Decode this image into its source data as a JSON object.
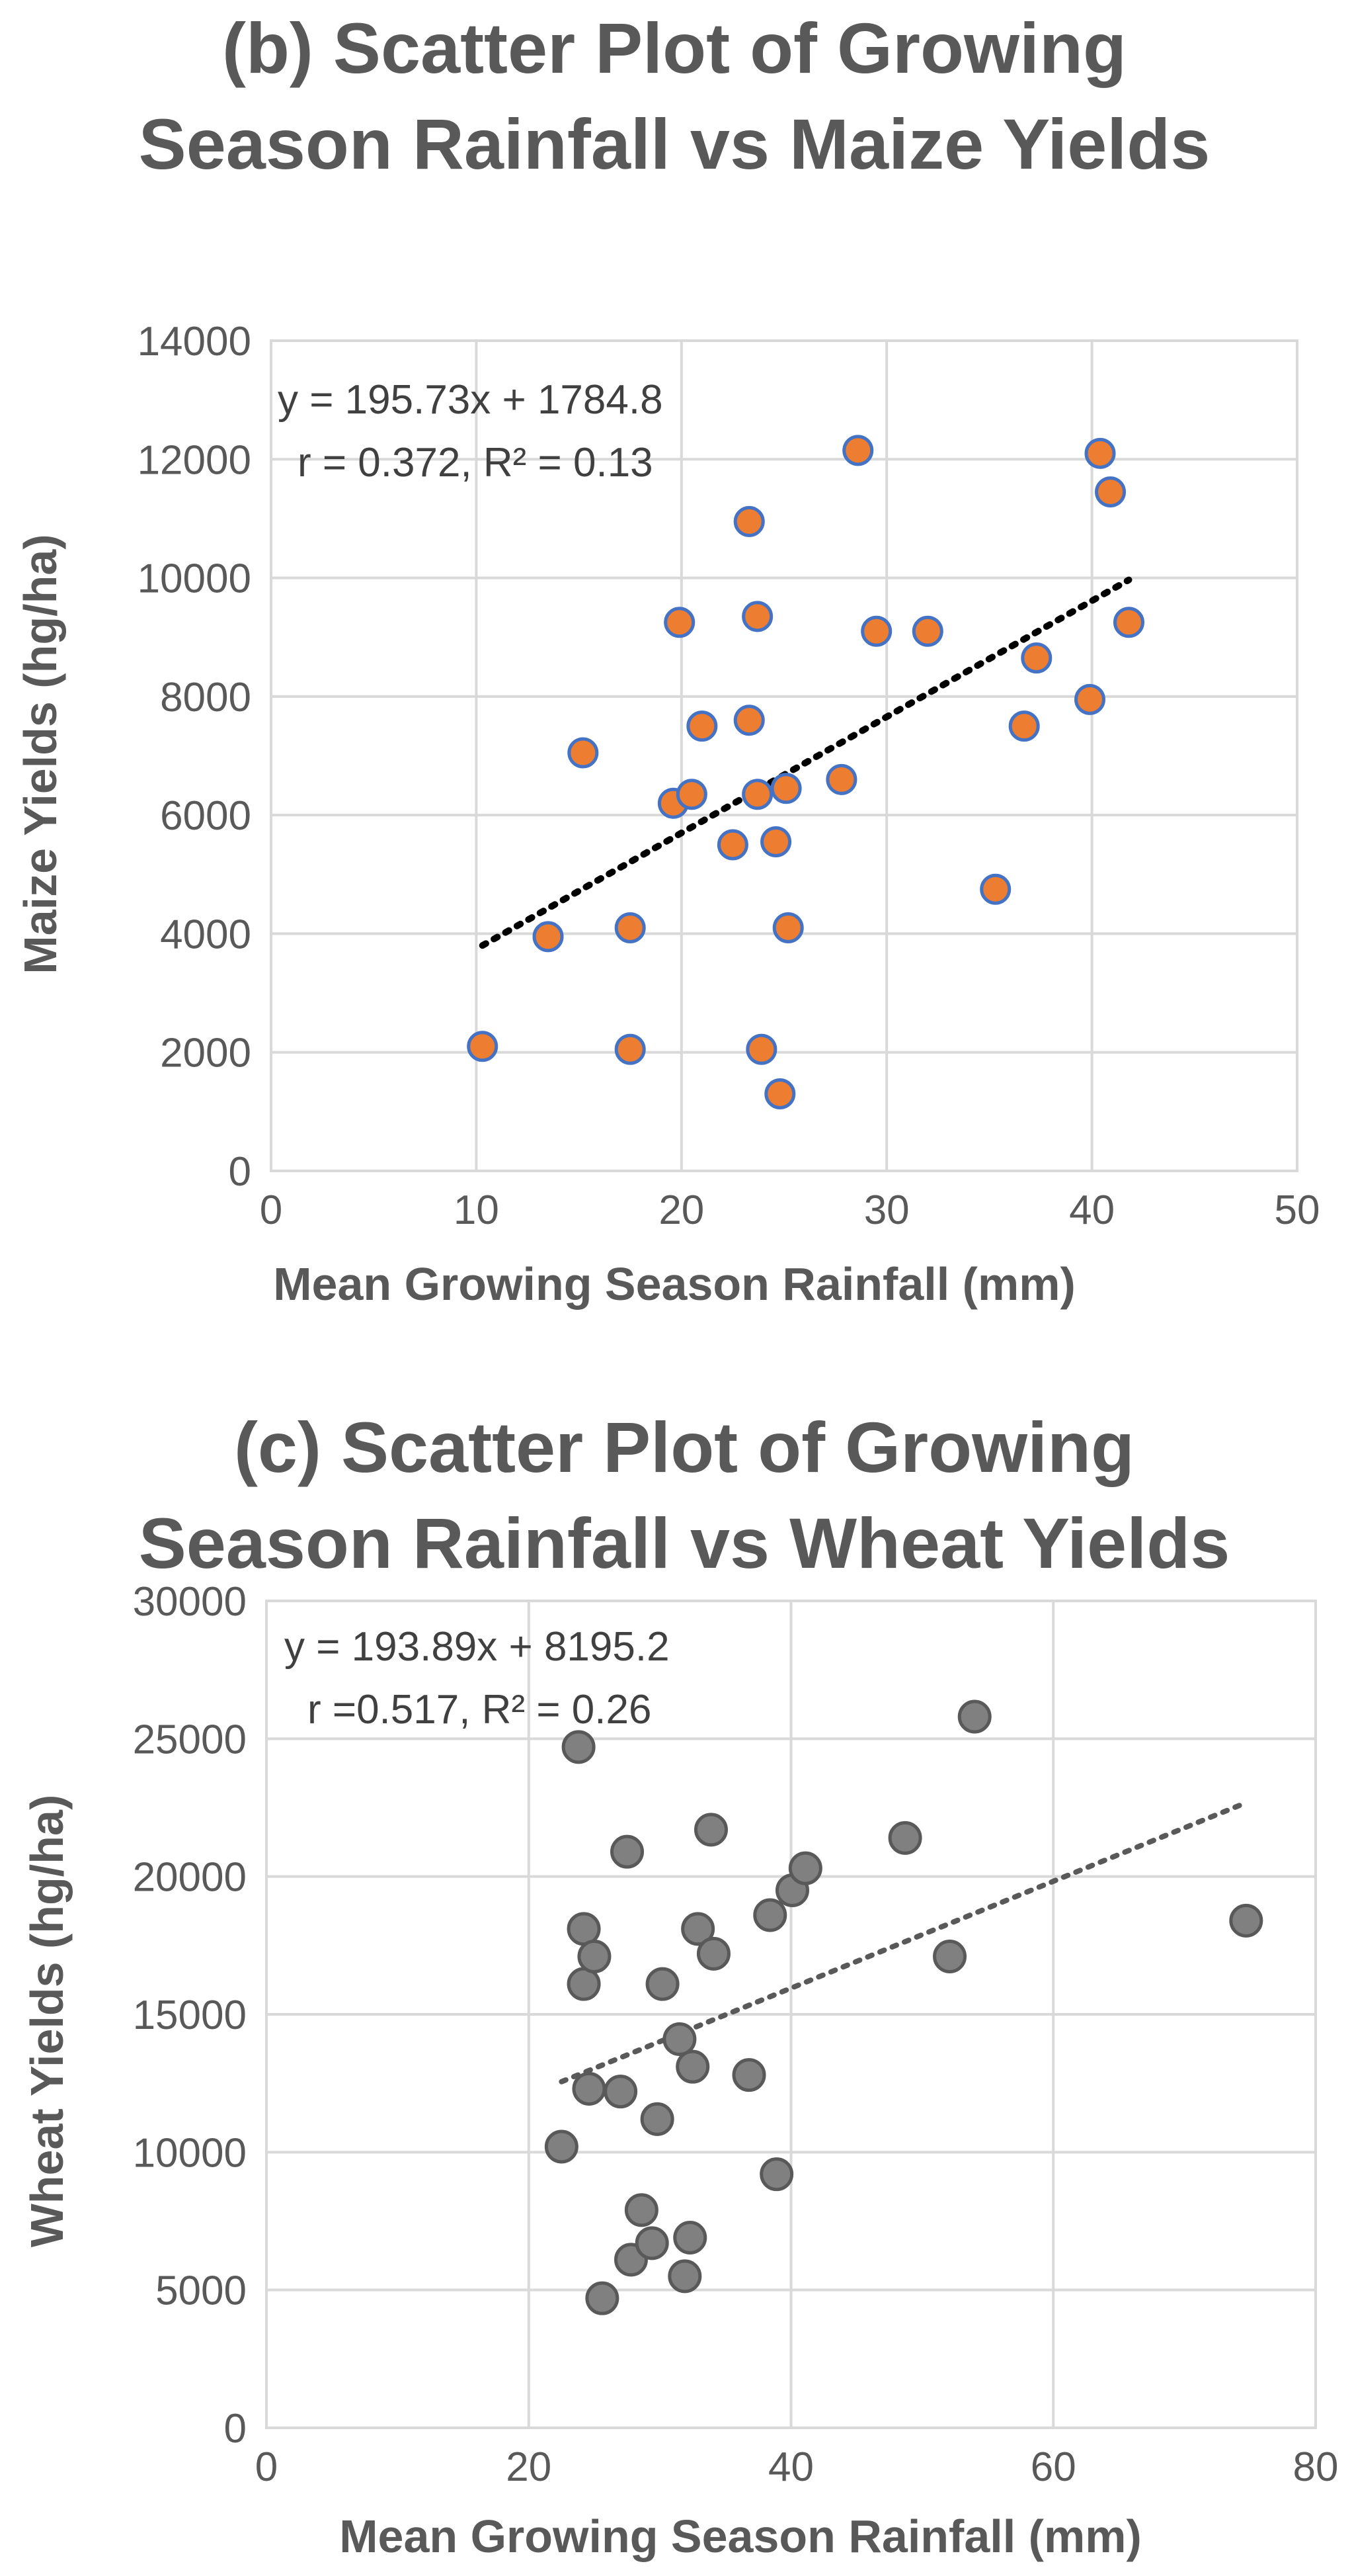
{
  "chart_data": [
    {
      "type": "scatter",
      "title_lines": [
        "(b) Scatter Plot of Growing",
        "Season Rainfall vs Maize Yields"
      ],
      "xlabel": "Mean Growing Season Rainfall (mm)",
      "ylabel": "Maize Yields (hg/ha)",
      "xlim": [
        0,
        50
      ],
      "ylim": [
        0,
        14000
      ],
      "xticks": [
        0,
        10,
        20,
        30,
        40,
        50
      ],
      "yticks": [
        0,
        2000,
        4000,
        6000,
        8000,
        10000,
        12000,
        14000
      ],
      "grid": true,
      "marker_fill": "#ED7D31",
      "marker_stroke": "#4472C4",
      "trendline_color": "#000000",
      "equation_lines": [
        "y = 195.73x + 1784.8",
        "r = 0.372, R² = 0.13"
      ],
      "trendline": {
        "slope": 195.73,
        "intercept": 1784.8,
        "x_range": [
          10.3,
          41.8
        ]
      },
      "points": [
        {
          "x": 10.3,
          "y": 2100
        },
        {
          "x": 13.5,
          "y": 3950
        },
        {
          "x": 15.2,
          "y": 7050
        },
        {
          "x": 17.5,
          "y": 4100
        },
        {
          "x": 17.5,
          "y": 2050
        },
        {
          "x": 19.6,
          "y": 6200
        },
        {
          "x": 19.9,
          "y": 9250
        },
        {
          "x": 20.5,
          "y": 6350
        },
        {
          "x": 21.0,
          "y": 7500
        },
        {
          "x": 22.5,
          "y": 5500
        },
        {
          "x": 23.3,
          "y": 10950
        },
        {
          "x": 23.3,
          "y": 7600
        },
        {
          "x": 23.7,
          "y": 9350
        },
        {
          "x": 23.7,
          "y": 6350
        },
        {
          "x": 23.9,
          "y": 2050
        },
        {
          "x": 24.6,
          "y": 5550
        },
        {
          "x": 24.8,
          "y": 1300
        },
        {
          "x": 25.1,
          "y": 6450
        },
        {
          "x": 25.2,
          "y": 4100
        },
        {
          "x": 27.8,
          "y": 6600
        },
        {
          "x": 28.6,
          "y": 12150
        },
        {
          "x": 29.5,
          "y": 9100
        },
        {
          "x": 32.0,
          "y": 9100
        },
        {
          "x": 35.3,
          "y": 4750
        },
        {
          "x": 36.7,
          "y": 7500
        },
        {
          "x": 37.3,
          "y": 8650
        },
        {
          "x": 39.9,
          "y": 7950
        },
        {
          "x": 40.4,
          "y": 12100
        },
        {
          "x": 40.9,
          "y": 11450
        },
        {
          "x": 41.8,
          "y": 9250
        }
      ]
    },
    {
      "type": "scatter",
      "title_lines": [
        "(c) Scatter Plot of Growing",
        "Season Rainfall vs Wheat Yields"
      ],
      "xlabel": "Mean Growing Season Rainfall (mm)",
      "ylabel": "Wheat Yields (hg/ha)",
      "xlim": [
        0,
        80
      ],
      "ylim": [
        0,
        30000
      ],
      "xticks": [
        0,
        20,
        40,
        60,
        80
      ],
      "yticks": [
        0,
        5000,
        10000,
        15000,
        20000,
        25000,
        30000
      ],
      "grid": true,
      "marker_fill": "#808080",
      "marker_stroke": "#595959",
      "trendline_color": "#595959",
      "equation_lines": [
        "y = 193.89x + 8195.2",
        "r =0.517, R² = 0.26"
      ],
      "trendline": {
        "slope": 193.89,
        "intercept": 8195.2,
        "x_range": [
          22.5,
          74.7
        ]
      },
      "points": [
        {
          "x": 22.5,
          "y": 10200
        },
        {
          "x": 23.8,
          "y": 24700
        },
        {
          "x": 24.2,
          "y": 18100
        },
        {
          "x": 24.2,
          "y": 16100
        },
        {
          "x": 24.6,
          "y": 12300
        },
        {
          "x": 25.0,
          "y": 17100
        },
        {
          "x": 25.6,
          "y": 4700
        },
        {
          "x": 27.0,
          "y": 12200
        },
        {
          "x": 27.5,
          "y": 20900
        },
        {
          "x": 27.8,
          "y": 6100
        },
        {
          "x": 28.6,
          "y": 7900
        },
        {
          "x": 29.4,
          "y": 6700
        },
        {
          "x": 29.8,
          "y": 11200
        },
        {
          "x": 30.2,
          "y": 16100
        },
        {
          "x": 31.5,
          "y": 14100
        },
        {
          "x": 31.9,
          "y": 5500
        },
        {
          "x": 32.3,
          "y": 6900
        },
        {
          "x": 32.5,
          "y": 13100
        },
        {
          "x": 32.9,
          "y": 18100
        },
        {
          "x": 33.9,
          "y": 21700
        },
        {
          "x": 34.1,
          "y": 17200
        },
        {
          "x": 36.8,
          "y": 12800
        },
        {
          "x": 38.4,
          "y": 18600
        },
        {
          "x": 38.9,
          "y": 9200
        },
        {
          "x": 40.1,
          "y": 19500
        },
        {
          "x": 41.1,
          "y": 20300
        },
        {
          "x": 48.7,
          "y": 21400
        },
        {
          "x": 52.1,
          "y": 17100
        },
        {
          "x": 54.0,
          "y": 25800
        },
        {
          "x": 74.7,
          "y": 18400
        }
      ]
    }
  ]
}
